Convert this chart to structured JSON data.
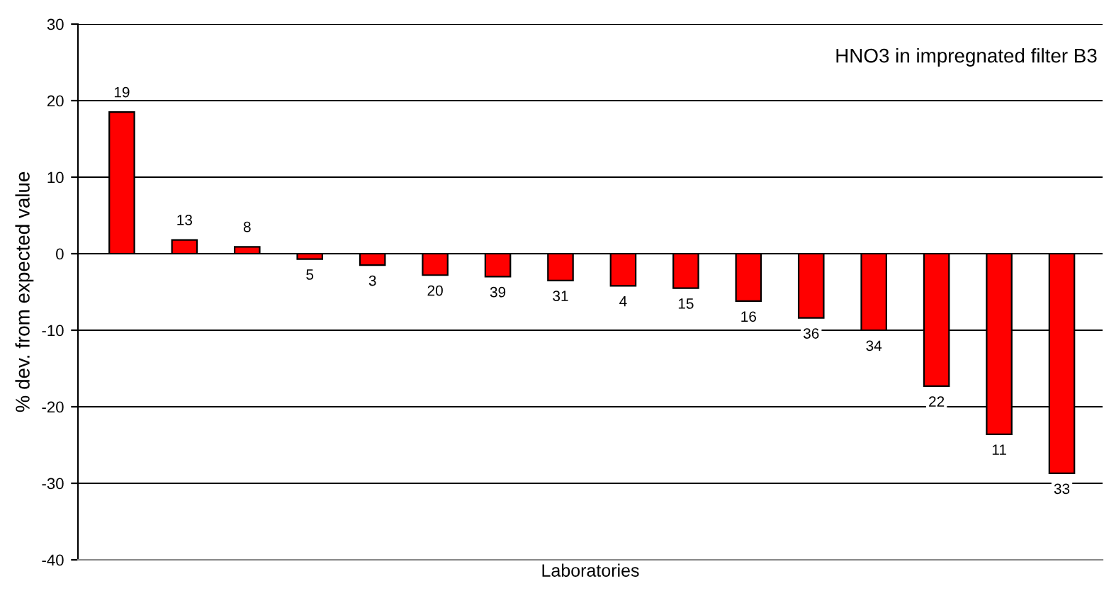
{
  "chart_data": {
    "type": "bar",
    "title": "HNO3 in impregnated filter B3",
    "xlabel": "Laboratories",
    "ylabel": "% dev. from expected value",
    "categories": [
      "19",
      "13",
      "8",
      "5",
      "3",
      "20",
      "39",
      "31",
      "4",
      "15",
      "16",
      "36",
      "34",
      "22",
      "11",
      "33"
    ],
    "values": [
      18.5,
      1.8,
      0.9,
      -0.7,
      -1.5,
      -2.8,
      -3.0,
      -3.5,
      -4.2,
      -4.5,
      -6.2,
      -8.4,
      -10.0,
      -17.3,
      -23.6,
      -28.7
    ],
    "color": "#ff0000",
    "ylim": [
      -40,
      30
    ],
    "yticks": [
      -40,
      -30,
      -20,
      -10,
      0,
      10,
      20,
      30
    ],
    "grid": "y",
    "legend": false
  }
}
